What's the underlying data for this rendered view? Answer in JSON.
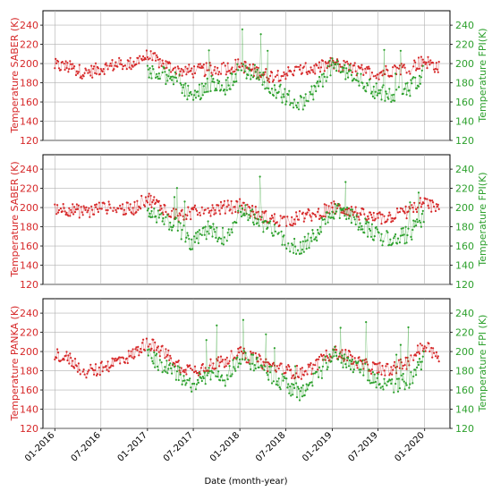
{
  "chart_data": [
    {
      "type": "line",
      "ylabel_left": "Temperature SABER (K)",
      "ylabel_right": "Temperature  FPI(K)",
      "ylim": [
        120,
        255
      ],
      "yticks": [
        120,
        140,
        160,
        180,
        200,
        220,
        240
      ],
      "grid": true,
      "series": [
        {
          "color": "#d62728",
          "x": [
            "2016-01-01",
            "2016-03-01",
            "2016-05-01",
            "2016-07-01",
            "2016-09-01",
            "2016-11-01",
            "2017-01-01",
            "2017-03-01",
            "2017-05-01",
            "2017-07-01",
            "2017-09-01",
            "2017-11-01",
            "2018-01-01",
            "2018-03-01",
            "2018-05-01",
            "2018-07-01",
            "2018-09-01",
            "2018-11-01",
            "2019-01-01",
            "2019-03-01",
            "2019-05-01",
            "2019-07-01",
            "2019-09-01",
            "2019-11-01",
            "2020-01-01",
            "2020-03-01"
          ],
          "values": [
            198,
            196,
            190,
            195,
            199,
            200,
            208,
            200,
            193,
            192,
            194,
            195,
            199,
            192,
            187,
            190,
            193,
            195,
            200,
            196,
            192,
            190,
            194,
            196,
            203,
            195
          ]
        },
        {
          "color": "#2ca02c",
          "x": [
            "2017-01-01",
            "2017-03-01",
            "2017-05-01",
            "2017-07-01",
            "2017-09-01",
            "2017-11-01",
            "2018-01-01",
            "2018-03-01",
            "2018-05-01",
            "2018-07-01",
            "2018-09-01",
            "2018-11-01",
            "2019-01-01",
            "2019-03-01",
            "2019-05-01",
            "2019-07-01",
            "2019-09-01",
            "2019-11-01",
            "2020-01-01"
          ],
          "values": [
            195,
            188,
            182,
            165,
            180,
            172,
            195,
            190,
            178,
            165,
            158,
            175,
            198,
            192,
            182,
            170,
            168,
            172,
            193
          ]
        }
      ]
    },
    {
      "type": "line",
      "ylabel_left": "Temperature SABER (K)",
      "ylabel_right": "Temperature  FPI(K)",
      "ylim": [
        120,
        255
      ],
      "yticks": [
        120,
        140,
        160,
        180,
        200,
        220,
        240
      ],
      "grid": true,
      "series": [
        {
          "color": "#d62728",
          "x": [
            "2016-01-01",
            "2016-03-01",
            "2016-05-01",
            "2016-07-01",
            "2016-09-01",
            "2016-11-01",
            "2017-01-01",
            "2017-03-01",
            "2017-05-01",
            "2017-07-01",
            "2017-09-01",
            "2017-11-01",
            "2018-01-01",
            "2018-03-01",
            "2018-05-01",
            "2018-07-01",
            "2018-09-01",
            "2018-11-01",
            "2019-01-01",
            "2019-03-01",
            "2019-05-01",
            "2019-07-01",
            "2019-09-01",
            "2019-11-01",
            "2020-01-01",
            "2020-03-01"
          ],
          "values": [
            200,
            198,
            195,
            200,
            199,
            198,
            210,
            200,
            192,
            195,
            198,
            200,
            202,
            195,
            188,
            186,
            190,
            194,
            200,
            198,
            192,
            188,
            192,
            196,
            206,
            196
          ]
        },
        {
          "color": "#2ca02c",
          "x": [
            "2017-01-01",
            "2017-03-01",
            "2017-05-01",
            "2017-07-01",
            "2017-09-01",
            "2017-11-01",
            "2018-01-01",
            "2018-03-01",
            "2018-05-01",
            "2018-07-01",
            "2018-09-01",
            "2018-11-01",
            "2019-01-01",
            "2019-03-01",
            "2019-05-01",
            "2019-07-01",
            "2019-09-01",
            "2019-11-01",
            "2020-01-01"
          ],
          "values": [
            196,
            186,
            180,
            162,
            178,
            170,
            196,
            190,
            178,
            165,
            157,
            174,
            198,
            192,
            183,
            170,
            167,
            172,
            192
          ]
        }
      ]
    },
    {
      "type": "line",
      "ylabel_left": "Temperature PANKA (K)",
      "ylabel_right": "Temperature FPI (K)",
      "xlabel": "Date (month-year)",
      "xtick_labels": [
        "01-2016",
        "07-2016",
        "01-2017",
        "07-2017",
        "01-2018",
        "07-2018",
        "01-2019",
        "07-2019",
        "01-2020"
      ],
      "ylim": [
        120,
        255
      ],
      "yticks": [
        120,
        140,
        160,
        180,
        200,
        220,
        240
      ],
      "grid": true,
      "series": [
        {
          "color": "#d62728",
          "x": [
            "2016-01-01",
            "2016-03-01",
            "2016-05-01",
            "2016-07-01",
            "2016-09-01",
            "2016-11-01",
            "2017-01-01",
            "2017-03-01",
            "2017-05-01",
            "2017-07-01",
            "2017-09-01",
            "2017-11-01",
            "2018-01-01",
            "2018-03-01",
            "2018-05-01",
            "2018-07-01",
            "2018-09-01",
            "2018-11-01",
            "2019-01-01",
            "2019-03-01",
            "2019-05-01",
            "2019-07-01",
            "2019-09-01",
            "2019-11-01",
            "2020-01-01",
            "2020-03-01"
          ],
          "values": [
            198,
            192,
            178,
            182,
            190,
            196,
            210,
            200,
            186,
            180,
            186,
            190,
            198,
            192,
            185,
            180,
            178,
            186,
            200,
            195,
            186,
            182,
            182,
            190,
            208,
            192
          ]
        },
        {
          "color": "#2ca02c",
          "x": [
            "2017-01-01",
            "2017-03-01",
            "2017-05-01",
            "2017-07-01",
            "2017-09-01",
            "2017-11-01",
            "2018-01-01",
            "2018-03-01",
            "2018-05-01",
            "2018-07-01",
            "2018-09-01",
            "2018-11-01",
            "2019-01-01",
            "2019-03-01",
            "2019-05-01",
            "2019-07-01",
            "2019-09-01",
            "2019-11-01",
            "2020-01-01"
          ],
          "values": [
            198,
            186,
            178,
            164,
            178,
            170,
            195,
            188,
            176,
            166,
            157,
            172,
            198,
            190,
            182,
            170,
            166,
            170,
            193
          ]
        }
      ]
    }
  ],
  "axis_colors": {
    "left": "#d62728",
    "right": "#2ca02c"
  }
}
